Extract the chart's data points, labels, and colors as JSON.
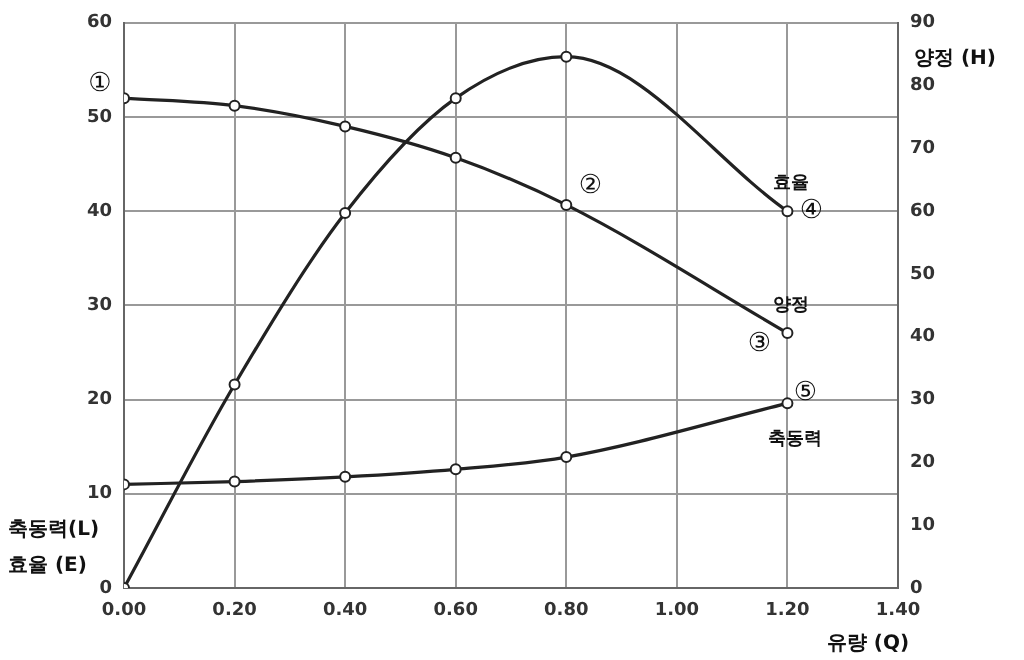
{
  "chart_data": {
    "type": "line",
    "xlabel": "유량 (Q)",
    "ylabel": "축동력(L)\n효율 (E)",
    "y2label": "양정 (H)",
    "x": [
      0,
      0.2,
      0.4,
      0.6,
      0.8,
      1.2
    ],
    "series": [
      {
        "name": "효율",
        "color": "#222222",
        "values": [
          0,
          21.6,
          39.8,
          52,
          56.4,
          40
        ]
      },
      {
        "name": "양정",
        "color": "#222222",
        "axis": "y2",
        "values": [
          78,
          76.8,
          73.5,
          68.5,
          61,
          40.6
        ]
      },
      {
        "name": "축동력",
        "color": "#222222",
        "values": [
          11,
          11.3,
          11.8,
          12.6,
          13.9,
          19.6
        ]
      }
    ],
    "xlim": [
      0,
      1.4
    ],
    "xticks": [
      {
        "value": 0,
        "label": "0.00"
      },
      {
        "value": 0.2,
        "label": "0.20"
      },
      {
        "value": 0.4,
        "label": "0.40"
      },
      {
        "value": 0.6,
        "label": "0.60"
      },
      {
        "value": 0.8,
        "label": "0.80"
      },
      {
        "value": 1,
        "label": "1.00"
      },
      {
        "value": 1.2,
        "label": "1.20"
      },
      {
        "value": 1.4,
        "label": "1.40"
      }
    ],
    "ylim": [
      0,
      60
    ],
    "yticks": [
      0,
      10,
      20,
      30,
      40,
      50,
      60
    ],
    "y2lim": [
      0,
      90
    ],
    "y2ticks": [
      0,
      10,
      20,
      30,
      40,
      50,
      60,
      70,
      80,
      90
    ],
    "annotations": [
      {
        "text": "①",
        "x": 0,
        "y": 52
      },
      {
        "text": "②",
        "x": 0.8,
        "y": 40.7
      },
      {
        "text": "③",
        "x": 1.2,
        "y": 27.1
      },
      {
        "text": "④",
        "x": 1.2,
        "y": 40
      },
      {
        "text": "⑤",
        "x": 1.2,
        "y": 19.6
      }
    ],
    "grid": true,
    "legend": false,
    "marker": "circle",
    "line_style": "solid"
  }
}
